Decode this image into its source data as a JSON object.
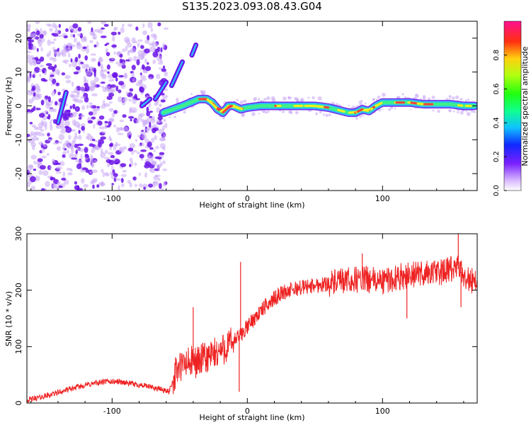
{
  "title": "S135.2023.093.08.43.G04",
  "chart_data": [
    {
      "type": "heatmap",
      "xlabel": "Height of straight line (km)",
      "ylabel": "Frequency (Hz)",
      "xlim": [
        -163,
        170
      ],
      "ylim": [
        -25,
        25
      ],
      "x_ticks": [
        -100,
        0,
        100
      ],
      "y_ticks": [
        -20,
        -10,
        0,
        10,
        20
      ],
      "colorbar": {
        "label": "Normalized spectral amplitude",
        "range": [
          0,
          1
        ],
        "ticks": [
          "0.0",
          "0.2",
          "0.4",
          "0.6",
          "0.8"
        ]
      },
      "ridge": {
        "x": [
          -62,
          -55,
          -48,
          -42,
          -36,
          -30,
          -26,
          -22,
          -18,
          -14,
          -10,
          -5,
          0,
          10,
          20,
          30,
          40,
          50,
          60,
          70,
          75,
          80,
          85,
          90,
          95,
          100,
          110,
          120,
          130,
          140,
          150,
          160,
          168
        ],
        "y": [
          -2,
          -1,
          0,
          1,
          2,
          2,
          1,
          -1,
          -2,
          0,
          0,
          -1,
          -0.5,
          0,
          0,
          0,
          0,
          0,
          -0.5,
          -1.5,
          -2,
          -2,
          -1,
          -1.5,
          0,
          1,
          1,
          1,
          0.5,
          0.5,
          0.5,
          0,
          0
        ]
      },
      "stripes": [
        {
          "x": [
            -68,
            -60
          ],
          "y": [
            2,
            7
          ]
        },
        {
          "x": [
            -56,
            -48
          ],
          "y": [
            6,
            13
          ]
        },
        {
          "x": [
            -41,
            -38
          ],
          "y": [
            15,
            18
          ]
        },
        {
          "x": [
            -78,
            -72
          ],
          "y": [
            0,
            2
          ]
        },
        {
          "x": [
            -140,
            -134
          ],
          "y": [
            -5,
            4
          ]
        }
      ],
      "colors": {
        "low": "#c9a8f5",
        "mid": "#6a12e8",
        "ridge_outer": "#2fb8ff",
        "ridge_mid": "#3cf08a",
        "ridge_peak": "#ff3d3d"
      }
    },
    {
      "type": "line",
      "xlabel": "Height of straight line (km)",
      "ylabel": "SNR (10 * v/v)",
      "xlim": [
        -163,
        170
      ],
      "ylim": [
        0,
        300
      ],
      "x_ticks": [
        -100,
        0,
        100
      ],
      "y_ticks": [
        0,
        100,
        200,
        300
      ],
      "color": "#ee2222",
      "trend": {
        "x": [
          -163,
          -150,
          -135,
          -120,
          -105,
          -95,
          -85,
          -75,
          -65,
          -58,
          -52,
          -45,
          -35,
          -25,
          -15,
          -5,
          5,
          15,
          25,
          40,
          55,
          70,
          85,
          100,
          115,
          130,
          145,
          155,
          163,
          170
        ],
        "y": [
          5,
          12,
          22,
          32,
          38,
          38,
          34,
          30,
          25,
          20,
          60,
          70,
          75,
          85,
          100,
          120,
          150,
          175,
          195,
          205,
          210,
          215,
          220,
          215,
          225,
          230,
          232,
          240,
          220,
          215
        ]
      },
      "spikes": [
        {
          "x": -40,
          "y": 170
        },
        {
          "x": -5,
          "y": 250
        },
        {
          "x": -6,
          "y": 20
        },
        {
          "x": 85,
          "y": 265
        },
        {
          "x": 118,
          "y": 150
        },
        {
          "x": 156,
          "y": 300
        },
        {
          "x": 158,
          "y": 170
        }
      ]
    }
  ]
}
